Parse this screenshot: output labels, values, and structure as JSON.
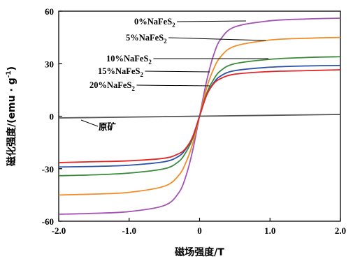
{
  "chart_data": {
    "type": "line",
    "xlabel": "磁场强度/T",
    "ylabel": {
      "prefix": "磁化强度/(emu · g",
      "sup": "-1",
      "suffix": ")"
    },
    "xlim": [
      -2.0,
      2.0
    ],
    "ylim": [
      -60,
      60
    ],
    "x_ticks": [
      -2.0,
      -1.0,
      0,
      1.0,
      2.0
    ],
    "x_tick_labels": [
      "-2.0",
      "-1.0",
      "0",
      "1.0",
      "2.0"
    ],
    "y_ticks": [
      -60,
      -30,
      0,
      30,
      60
    ],
    "y_tick_labels": [
      "-60",
      "-30",
      "0",
      "30",
      "60"
    ],
    "grid": false,
    "legend": "none",
    "series": [
      {
        "name": "0%NaFeS₂",
        "label": {
          "main": "0%NaFeS",
          "sub": "2"
        },
        "color": "#a454b4",
        "x": [
          -2.0,
          -1.5,
          -1.0,
          -0.5,
          -0.3,
          -0.2,
          -0.1,
          0.0,
          0.1,
          0.2,
          0.3,
          0.5,
          1.0,
          1.5,
          2.0
        ],
        "y": [
          -56,
          -55.5,
          -54.5,
          -51,
          -44,
          -35,
          -20,
          0,
          20,
          35,
          44,
          51,
          54.5,
          55.5,
          56
        ]
      },
      {
        "name": "5%NaFeS₂",
        "label": {
          "main": "5%NaFeS",
          "sub": "2"
        },
        "color": "#f28c28",
        "x": [
          -2.0,
          -1.5,
          -1.0,
          -0.5,
          -0.3,
          -0.2,
          -0.1,
          0.0,
          0.1,
          0.2,
          0.3,
          0.5,
          1.0,
          1.5,
          2.0
        ],
        "y": [
          -45,
          -44.5,
          -43.5,
          -40,
          -34,
          -27,
          -16,
          0,
          16,
          27,
          34,
          40,
          43.5,
          44.5,
          45
        ]
      },
      {
        "name": "10%NaFeS₂",
        "label": {
          "main": "10%NaFeS",
          "sub": "2"
        },
        "color": "#3a8a3a",
        "x": [
          -2.0,
          -1.5,
          -1.0,
          -0.5,
          -0.3,
          -0.2,
          -0.1,
          0.0,
          0.1,
          0.2,
          0.3,
          0.5,
          1.0,
          1.5,
          2.0
        ],
        "y": [
          -34,
          -33.5,
          -32.5,
          -30,
          -26,
          -21,
          -13,
          0,
          13,
          21,
          26,
          30,
          32.5,
          33.5,
          34
        ]
      },
      {
        "name": "15%NaFeS₂",
        "label": {
          "main": "15%NaFeS",
          "sub": "2"
        },
        "color": "#2a52a8",
        "x": [
          -2.0,
          -1.5,
          -1.0,
          -0.5,
          -0.3,
          -0.2,
          -0.1,
          0.0,
          0.1,
          0.2,
          0.3,
          0.5,
          1.0,
          1.5,
          2.0
        ],
        "y": [
          -29,
          -28.7,
          -28,
          -26,
          -23,
          -19,
          -12,
          0,
          12,
          19,
          23,
          26,
          28,
          28.7,
          29
        ]
      },
      {
        "name": "20%NaFeS₂",
        "label": {
          "main": "20%NaFeS",
          "sub": "2"
        },
        "color": "#e02828",
        "x": [
          -2.0,
          -1.5,
          -1.0,
          -0.5,
          -0.3,
          -0.2,
          -0.1,
          0.0,
          0.1,
          0.2,
          0.3,
          0.5,
          1.0,
          1.5,
          2.0
        ],
        "y": [
          -26.5,
          -26,
          -25.5,
          -24,
          -21.5,
          -18.5,
          -12,
          0,
          12,
          18.5,
          21.5,
          24,
          25.5,
          26,
          26.5
        ]
      },
      {
        "name": "原矿",
        "label": {
          "main": "原矿",
          "sub": ""
        },
        "color": "#555555",
        "x": [
          -2.0,
          2.0
        ],
        "y": [
          -1.0,
          1.0
        ]
      }
    ]
  }
}
